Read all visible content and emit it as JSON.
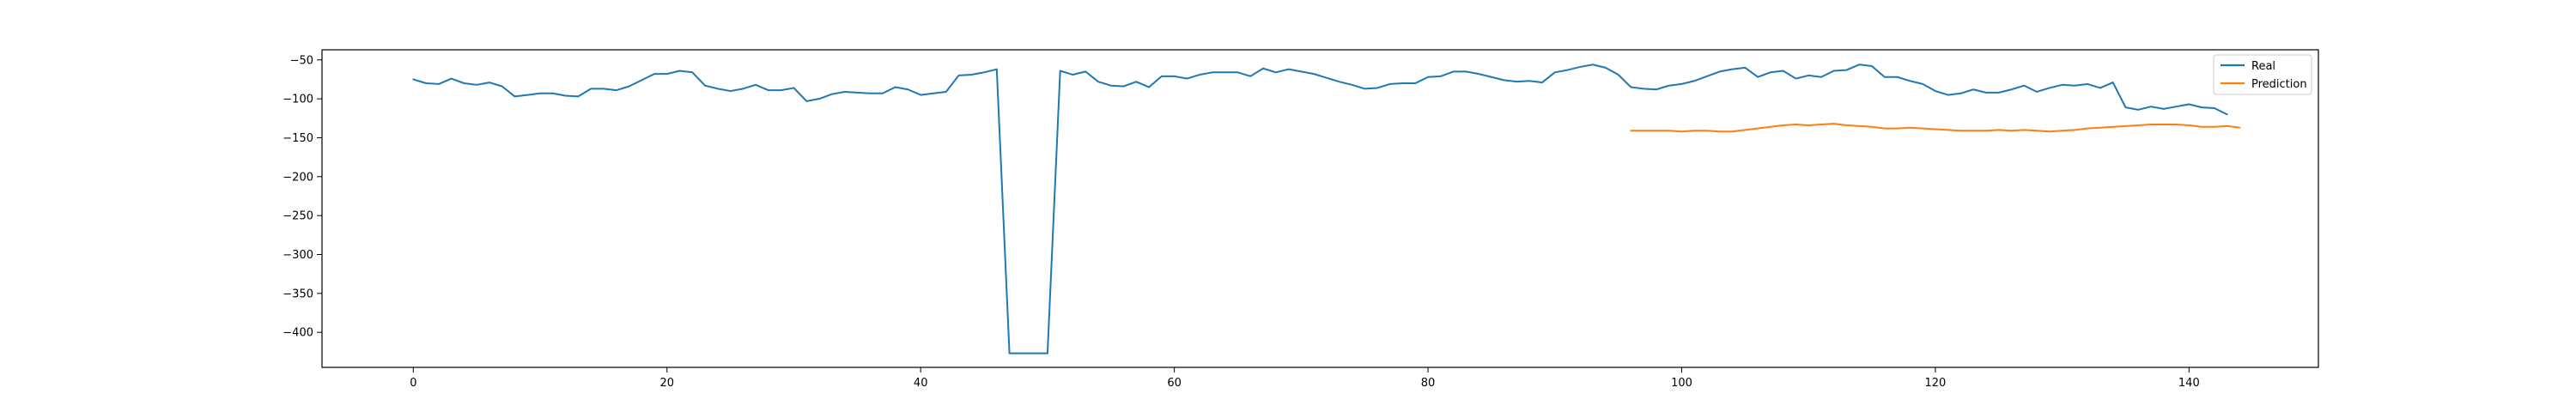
{
  "chart_data": {
    "type": "line",
    "title": "",
    "xlabel": "",
    "ylabel": "",
    "xlim": [
      -7.2,
      150.2
    ],
    "ylim": [
      -445,
      -37
    ],
    "x_ticks": [
      0,
      20,
      40,
      60,
      80,
      100,
      120,
      140
    ],
    "y_ticks": [
      -50,
      -100,
      -150,
      -200,
      -250,
      -300,
      -350,
      -400
    ],
    "grid": false,
    "legend_position": "top-right",
    "series": [
      {
        "name": "Real",
        "color": "#1f77b4",
        "x_start": 0,
        "values": [
          -75,
          -80,
          -81,
          -74,
          -80,
          -82,
          -79,
          -84,
          -97,
          -95,
          -93,
          -93,
          -96,
          -97,
          -87,
          -87,
          -89,
          -84,
          -76,
          -68,
          -68,
          -64,
          -66,
          -83,
          -87,
          -90,
          -87,
          -82,
          -89,
          -89,
          -86,
          -103,
          -100,
          -94,
          -91,
          -92,
          -93,
          -93,
          -85,
          -88,
          -95,
          -93,
          -91,
          -70,
          -69,
          -66,
          -62,
          -427,
          -427,
          -427,
          -427,
          -64,
          -69,
          -65,
          -78,
          -83,
          -84,
          -78,
          -85,
          -71,
          -71,
          -74,
          -69,
          -66,
          -66,
          -66,
          -71,
          -61,
          -66,
          -62,
          -65,
          -68,
          -73,
          -78,
          -82,
          -87,
          -86,
          -81,
          -80,
          -80,
          -72,
          -71,
          -65,
          -65,
          -68,
          -72,
          -76,
          -78,
          -77,
          -79,
          -66,
          -63,
          -59,
          -56,
          -60,
          -69,
          -85,
          -87,
          -88,
          -83,
          -81,
          -77,
          -71,
          -65,
          -62,
          -60,
          -72,
          -66,
          -64,
          -74,
          -70,
          -72,
          -64,
          -63,
          -56,
          -58,
          -72,
          -72,
          -77,
          -81,
          -90,
          -95,
          -93,
          -88,
          -92,
          -92,
          -88,
          -83,
          -91,
          -86,
          -82,
          -83,
          -81,
          -86,
          -79,
          -111,
          -114,
          -110,
          -113,
          -110,
          -107,
          -111,
          -112,
          -120
        ]
      },
      {
        "name": "Prediction",
        "color": "#ff7f0e",
        "x_start": 96,
        "values": [
          -141,
          -141,
          -141,
          -141,
          -142,
          -141,
          -141,
          -142,
          -142,
          -140,
          -138,
          -136,
          -134,
          -133,
          -134,
          -133,
          -132,
          -134,
          -135,
          -136,
          -138,
          -138,
          -137,
          -138,
          -139,
          -140,
          -141,
          -141,
          -141,
          -140,
          -141,
          -140,
          -141,
          -142,
          -141,
          -140,
          -138,
          -137,
          -136,
          -135,
          -134,
          -133,
          -133,
          -133,
          -134,
          -136,
          -136,
          -135,
          -137
        ]
      }
    ]
  }
}
